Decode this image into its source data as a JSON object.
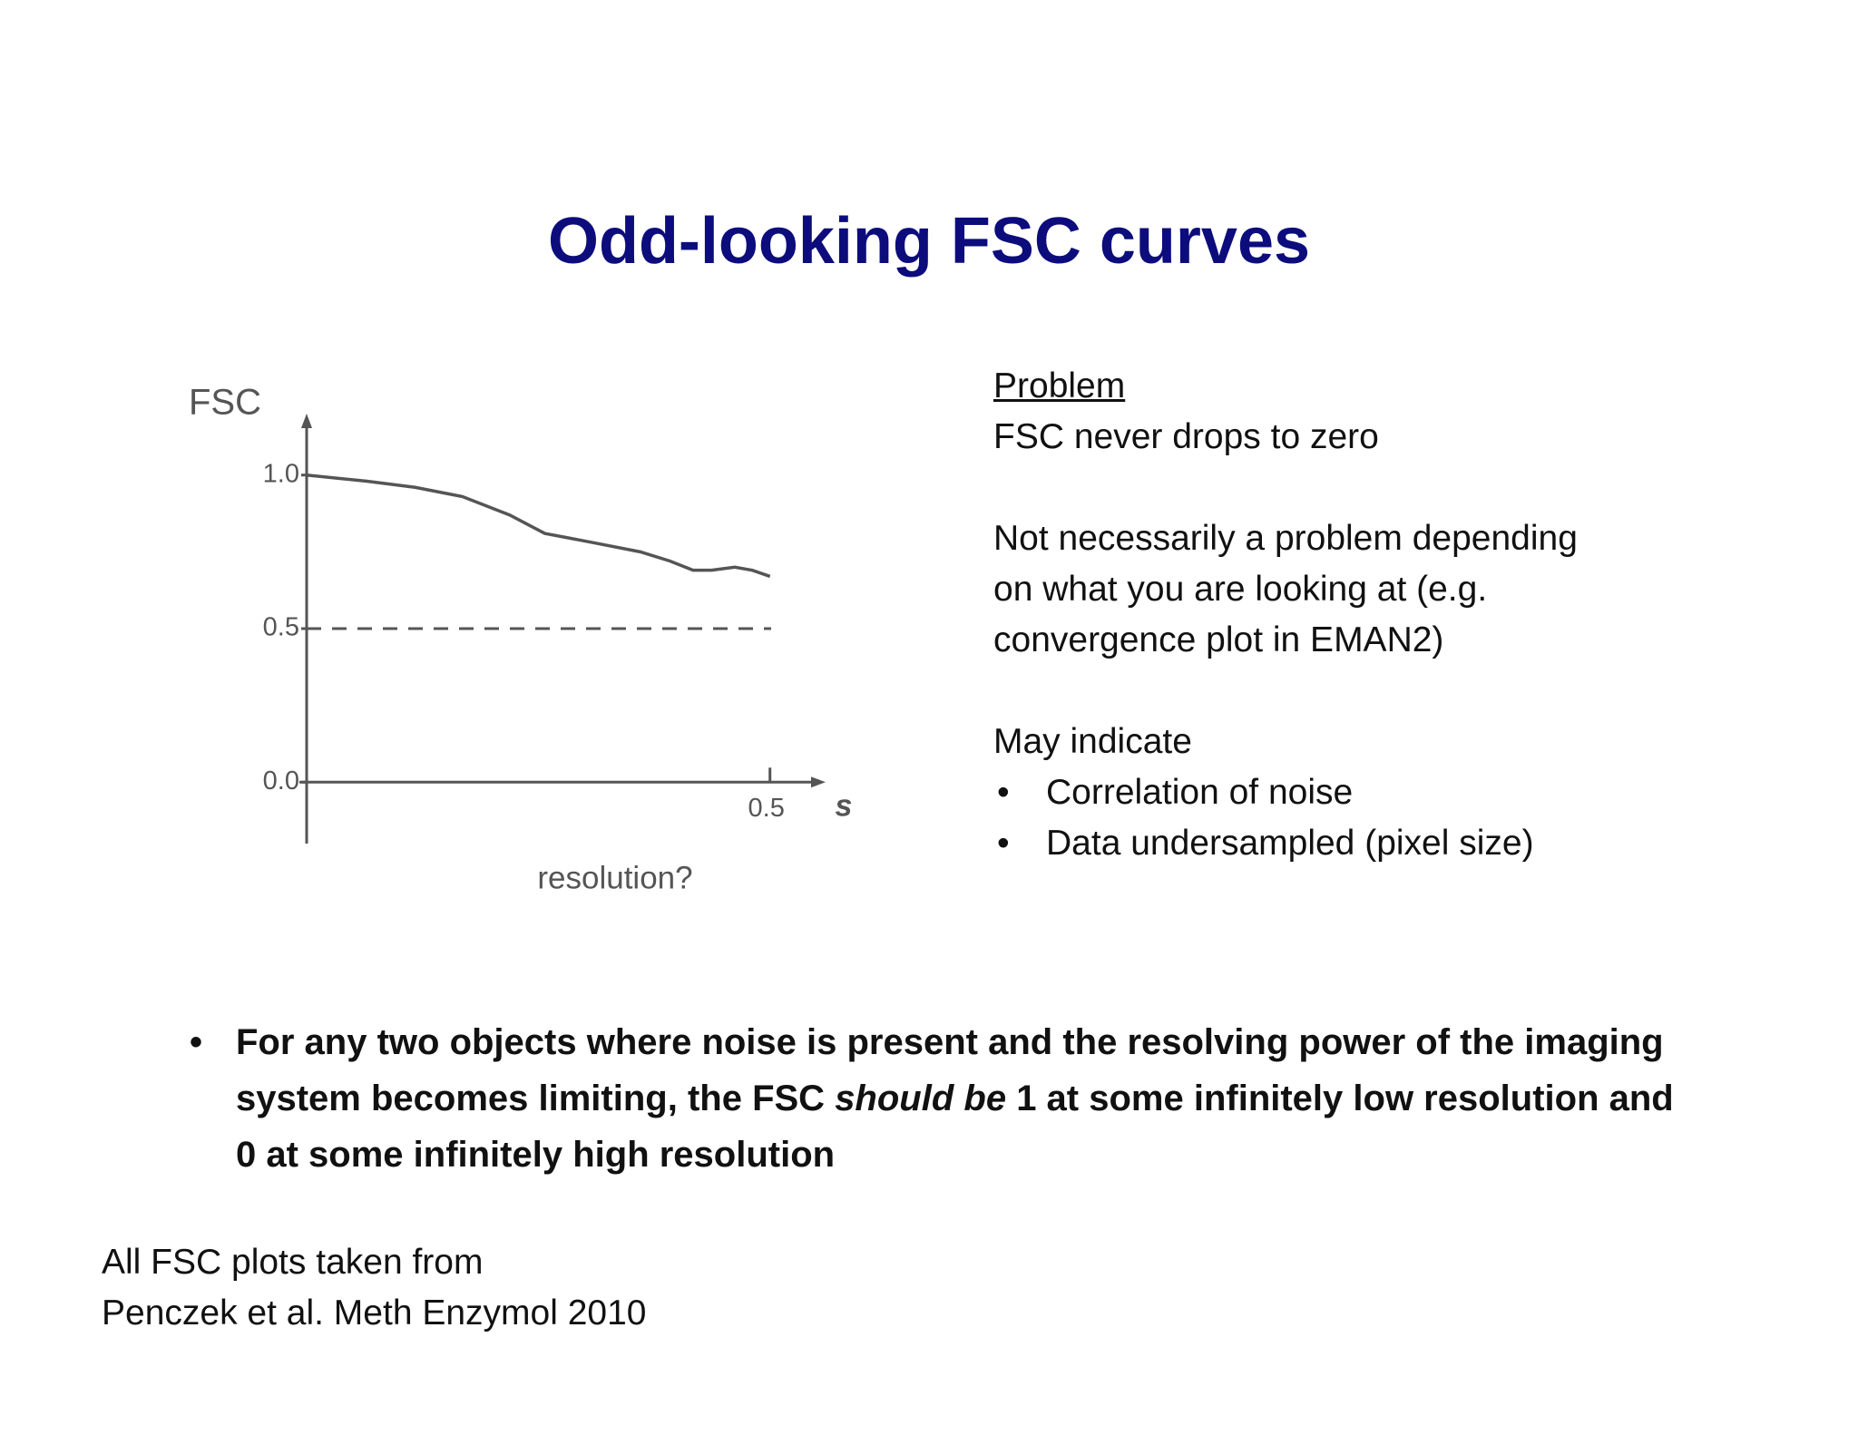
{
  "title": "Odd-looking FSC curves",
  "chart_data": {
    "type": "line",
    "ylabel": "FSC",
    "x_symbol": "s",
    "xlabel": "resolution?",
    "x": [
      0,
      0.065,
      0.117,
      0.168,
      0.219,
      0.257,
      0.309,
      0.36,
      0.392,
      0.417,
      0.437,
      0.462,
      0.481,
      0.5
    ],
    "values": [
      1.0,
      0.98,
      0.96,
      0.93,
      0.87,
      0.81,
      0.78,
      0.75,
      0.72,
      0.69,
      0.69,
      0.7,
      0.69,
      0.67
    ],
    "color": "#555555",
    "xlim": [
      0,
      0.56
    ],
    "ylim": [
      -0.2,
      1.2
    ],
    "yticks": [
      {
        "value": 1,
        "label": "1.0"
      },
      0.5,
      {
        "value": 0,
        "label": "0.0"
      }
    ],
    "xticks": [
      0.5
    ],
    "reference_line": 0.5
  },
  "problem": {
    "heading": "Problem",
    "lines": [
      "FSC never drops to zero"
    ]
  },
  "note": {
    "lines": [
      "Not necessarily a problem depending",
      "on what you are looking at (e.g.",
      "convergence plot in EMAN2)"
    ]
  },
  "indications": {
    "heading": "May indicate",
    "items": [
      "Correlation of noise",
      "Data undersampled (pixel size)"
    ]
  },
  "statement": {
    "before": "For any two objects where noise is present and the resolving power of the imaging system becomes limiting, the FSC ",
    "emphasis": "should be",
    "after": " 1 at some infinitely low resolution and 0 at some infinitely high resolution"
  },
  "footer": {
    "lines": [
      "All FSC plots taken from",
      "Penczek et al. Meth Enzymol 2010"
    ]
  }
}
